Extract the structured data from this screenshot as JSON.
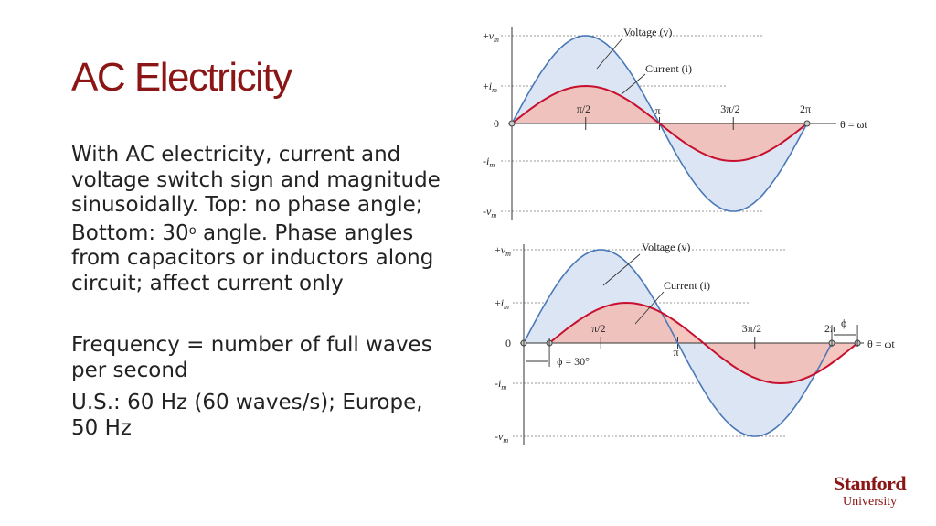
{
  "slide": {
    "title": "AC Electricity",
    "paragraphs": {
      "p1_before_sup": "With AC electricity, current and voltage switch sign and magnitude sinusoidally. Top: no phase angle; Bottom: 30",
      "p1_sup": "o",
      "p1_after_sup": " angle. Phase angles from capacitors or inductors along circuit; affect current only",
      "p2": "Frequency = number of full waves per second",
      "p3": "U.S.: 60 Hz (60 waves/s); Europe, 50 Hz"
    }
  },
  "logo": {
    "line1": "Stanford",
    "line2": "University"
  },
  "colors": {
    "title": "#8c1515",
    "voltage": "#4a78b8",
    "voltage_fill": "#dbe5f3",
    "current": "#c8102e",
    "current_fill": "#f2bcb4"
  },
  "figures": [
    {
      "voltage_label": "Voltage (v)",
      "current_label": "Current (i)",
      "y_labels": [
        "+vm",
        "+im",
        "0",
        "-im",
        "-vm"
      ],
      "x_labels": [
        "π/2",
        "π",
        "3π/2",
        "2π"
      ],
      "axis_label": "θ = ωt",
      "phase_deg": 0,
      "phase_label": "",
      "phi_label": ""
    },
    {
      "voltage_label": "Voltage (v)",
      "current_label": "Current (i)",
      "y_labels": [
        "+vm",
        "+im",
        "0",
        "-im",
        "-vm"
      ],
      "x_labels": [
        "π/2",
        "π",
        "3π/2",
        "2π"
      ],
      "axis_label": "θ = ωt",
      "phase_deg": 30,
      "phase_label": "ϕ = 30°",
      "phi_label": "ϕ"
    }
  ]
}
